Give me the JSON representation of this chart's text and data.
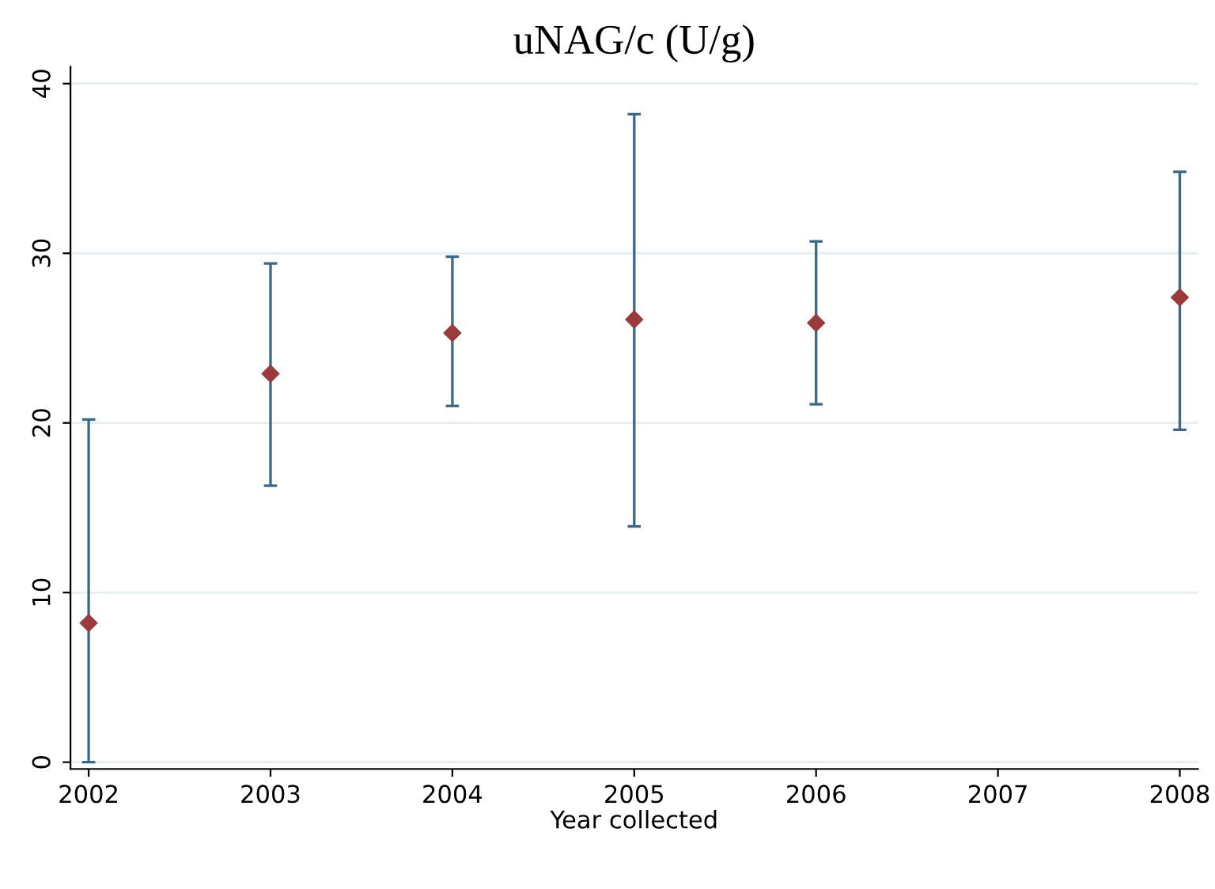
{
  "chart_data": {
    "type": "scatter",
    "title": "uNAG/c (U/g)",
    "xlabel": "Year collected",
    "x": [
      2002,
      2003,
      2004,
      2005,
      2006,
      2008
    ],
    "values": [
      8.2,
      22.9,
      25.3,
      26.1,
      25.9,
      27.4
    ],
    "errors": [
      [
        0,
        20.2
      ],
      [
        16.3,
        29.4
      ],
      [
        21.0,
        29.8
      ],
      [
        13.9,
        38.2
      ],
      [
        21.1,
        30.7
      ],
      [
        19.6,
        34.8
      ]
    ],
    "color": "#9b3b3b",
    "marker": "diamond",
    "xlim": [
      2001.9,
      2008.1
    ],
    "xticks": [
      2002,
      2003,
      2004,
      2005,
      2006,
      2007,
      2008
    ],
    "ylim": [
      -0.4,
      41
    ],
    "yticks": [
      0,
      10,
      20,
      30,
      40
    ],
    "grid": "y"
  }
}
